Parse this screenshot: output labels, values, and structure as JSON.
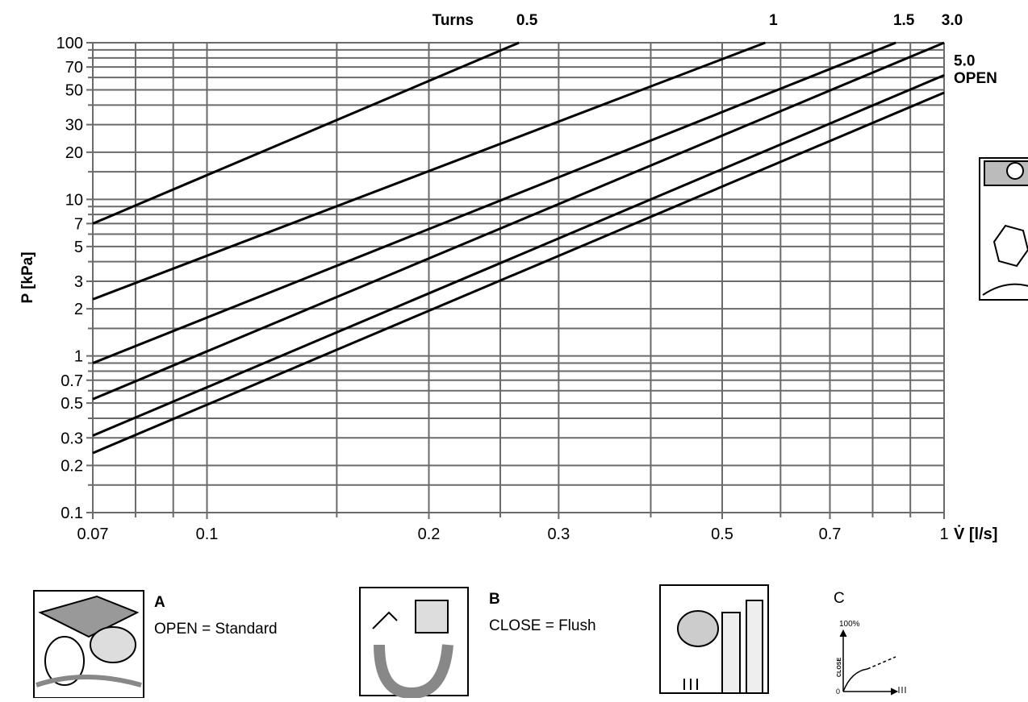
{
  "chart_data": {
    "type": "line",
    "turns_label": "Turns",
    "xlabel": "V̇ [l/s]",
    "ylabel": "P [kPa]",
    "xlog": true,
    "ylog": true,
    "grid": true,
    "xlim": [
      0.07,
      1
    ],
    "ylim": [
      0.1,
      100
    ],
    "xticks": [
      0.07,
      0.1,
      0.2,
      0.3,
      0.5,
      0.7,
      1
    ],
    "xminor": [
      0.08,
      0.09,
      0.15,
      0.25,
      0.4,
      0.6,
      0.8,
      0.9
    ],
    "yticks": [
      0.1,
      0.2,
      0.3,
      0.5,
      0.7,
      1,
      2,
      3,
      5,
      7,
      10,
      20,
      30,
      50,
      70,
      100
    ],
    "yminor": [
      0.15,
      0.4,
      0.6,
      0.8,
      0.9,
      1.5,
      4,
      6,
      8,
      9,
      15,
      40,
      60,
      80,
      90
    ],
    "series": [
      {
        "name": "0.5",
        "color": "#000000",
        "x": [
          0.07,
          0.265
        ],
        "values": [
          7,
          100
        ]
      },
      {
        "name": "1",
        "color": "#000000",
        "x": [
          0.07,
          0.572
        ],
        "values": [
          2.3,
          100
        ]
      },
      {
        "name": "1.5",
        "color": "#000000",
        "x": [
          0.07,
          0.86
        ],
        "values": [
          0.9,
          100
        ]
      },
      {
        "name": "3.0",
        "color": "#000000",
        "x": [
          0.07,
          1
        ],
        "values": [
          0.53,
          100
        ]
      },
      {
        "name": "5.0",
        "color": "#000000",
        "x": [
          0.07,
          1
        ],
        "values": [
          0.31,
          62
        ]
      },
      {
        "name": "OPEN",
        "color": "#000000",
        "x": [
          0.07,
          1
        ],
        "values": [
          0.24,
          48
        ]
      }
    ]
  },
  "panels": [
    {
      "letter": "A",
      "text": "OPEN = Standard"
    },
    {
      "letter": "B",
      "text": "CLOSE = Flush"
    },
    {
      "letter": "C"
    }
  ],
  "graph_c": {
    "top": "100%",
    "axis": "CLOSE",
    "origin": "0"
  }
}
